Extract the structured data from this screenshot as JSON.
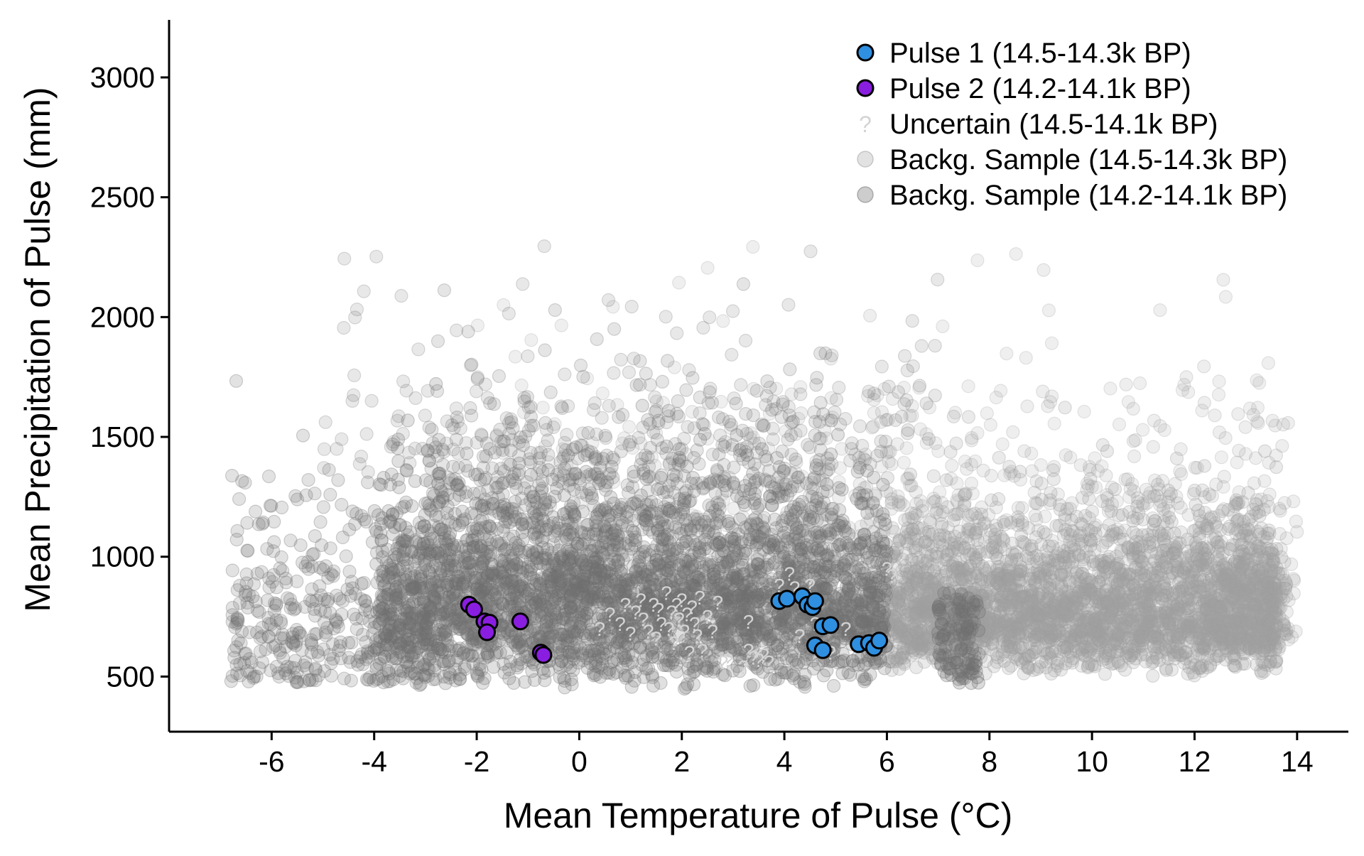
{
  "chart_data": {
    "type": "scatter",
    "xlabel": "Mean Temperature of Pulse (°C)",
    "ylabel": "Mean Precipitation of Pulse (mm)",
    "xlim": [
      -8,
      15
    ],
    "ylim": [
      270,
      3240
    ],
    "x_ticks": [
      -6,
      -4,
      -2,
      0,
      2,
      4,
      6,
      8,
      10,
      12,
      14
    ],
    "y_ticks": [
      500,
      1000,
      1500,
      2000,
      2500,
      3000
    ],
    "grid": false,
    "legend_position": "top-right",
    "colors": {
      "pulse1": "#2f8fe0",
      "pulse2": "#8a1ee0",
      "uncertain": "#d4d4d4",
      "bg1": "#9e9e9e",
      "bg2": "#707070",
      "marker_edge": "#000000",
      "axis": "#000000"
    },
    "series": [
      {
        "name": "Pulse 1 (14.5-14.3k BP)",
        "marker": "circle-outlined",
        "points": [
          [
            3.9,
            815
          ],
          [
            4.05,
            825
          ],
          [
            4.35,
            835
          ],
          [
            4.45,
            800
          ],
          [
            4.55,
            790
          ],
          [
            4.6,
            815
          ],
          [
            4.75,
            710
          ],
          [
            4.9,
            715
          ],
          [
            4.6,
            630
          ],
          [
            4.75,
            610
          ],
          [
            5.45,
            635
          ],
          [
            5.65,
            640
          ],
          [
            5.75,
            620
          ],
          [
            5.85,
            650
          ]
        ]
      },
      {
        "name": "Pulse 2 (14.2-14.1k BP)",
        "marker": "circle-outlined",
        "points": [
          [
            -2.15,
            800
          ],
          [
            -2.05,
            780
          ],
          [
            -1.85,
            730
          ],
          [
            -1.75,
            725
          ],
          [
            -1.8,
            685
          ],
          [
            -1.15,
            730
          ],
          [
            -0.75,
            600
          ],
          [
            -0.7,
            590
          ]
        ]
      },
      {
        "name": "Uncertain (14.5-14.1k BP)",
        "marker": "question-mark",
        "summary": "approx. 100 points clustered near 1–3 °C / 600–850 mm and 3.5–5 °C / 550–900 mm",
        "points": [
          [
            0.4,
            700
          ],
          [
            0.6,
            760
          ],
          [
            0.8,
            720
          ],
          [
            0.9,
            800
          ],
          [
            1.0,
            680
          ],
          [
            1.1,
            770
          ],
          [
            1.2,
            820
          ],
          [
            1.25,
            740
          ],
          [
            1.35,
            690
          ],
          [
            1.45,
            800
          ],
          [
            1.5,
            660
          ],
          [
            1.55,
            780
          ],
          [
            1.6,
            720
          ],
          [
            1.7,
            850
          ],
          [
            1.75,
            700
          ],
          [
            1.8,
            770
          ],
          [
            1.85,
            640
          ],
          [
            1.9,
            800
          ],
          [
            1.95,
            740
          ],
          [
            2.0,
            820
          ],
          [
            2.05,
            690
          ],
          [
            2.1,
            760
          ],
          [
            2.15,
            600
          ],
          [
            2.2,
            790
          ],
          [
            2.25,
            720
          ],
          [
            2.3,
            670
          ],
          [
            2.35,
            830
          ],
          [
            2.4,
            610
          ],
          [
            2.5,
            750
          ],
          [
            2.6,
            690
          ],
          [
            2.7,
            810
          ],
          [
            2.8,
            560
          ],
          [
            2.9,
            570
          ],
          [
            3.2,
            540
          ],
          [
            3.3,
            610
          ],
          [
            3.4,
            580
          ],
          [
            3.5,
            570
          ],
          [
            3.6,
            590
          ],
          [
            3.7,
            560
          ],
          [
            3.3,
            730
          ],
          [
            3.9,
            880
          ],
          [
            4.1,
            930
          ],
          [
            4.2,
            870
          ],
          [
            4.3,
            670
          ],
          [
            4.5,
            880
          ],
          [
            4.6,
            720
          ],
          [
            4.9,
            600
          ],
          [
            5.2,
            700
          ],
          [
            6.0,
            950
          ],
          [
            6.1,
            920
          ]
        ]
      },
      {
        "name": "Backg. Sample (14.5-14.3k BP)",
        "marker": "circle-translucent",
        "summary": "dense cloud spanning about -7 to 14 °C and 400–2300 mm, densest 6–14 °C / 550–1100 mm"
      },
      {
        "name": "Backg. Sample (14.2-14.1k BP)",
        "marker": "circle-translucent",
        "summary": "dense cloud spanning about -7 to 7 °C and 400–2100 mm, densest -4–6 °C / 450–1200 mm"
      }
    ]
  }
}
